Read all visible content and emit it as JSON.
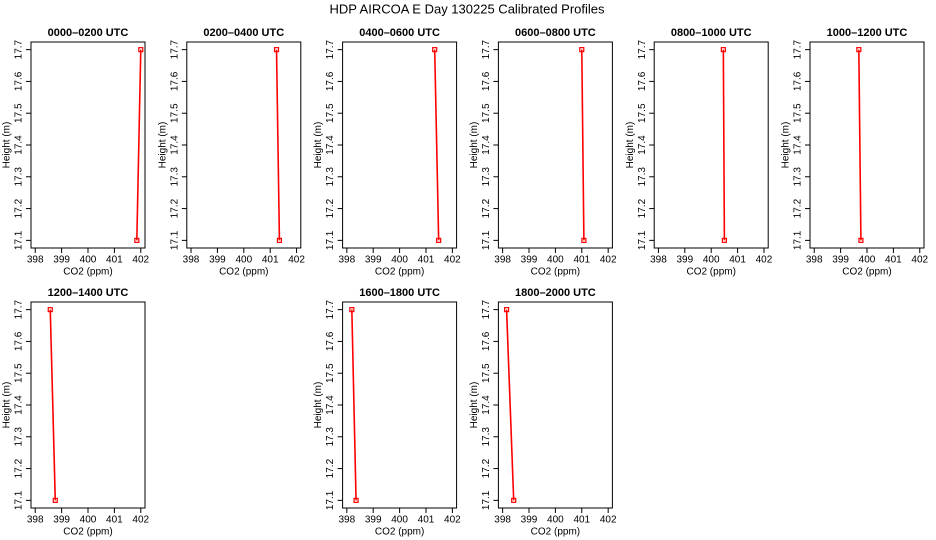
{
  "title": "HDP AIRCOA E  Day 130225  Calibrated Profiles",
  "chart_data": [
    {
      "type": "line",
      "title": "0000–0200 UTC",
      "xlabel": "CO2 (ppm)",
      "ylabel": "Height (m)",
      "x": [
        401.85,
        402.0
      ],
      "values": [
        17.1,
        17.7
      ],
      "color": "#ff0000",
      "xlim": [
        397.84,
        402.16
      ],
      "ylim": [
        17.076,
        17.724
      ],
      "xticks": [
        398,
        399,
        400,
        401,
        402
      ],
      "yticks": [
        17.1,
        17.2,
        17.3,
        17.4,
        17.5,
        17.6,
        17.7
      ]
    },
    {
      "type": "line",
      "title": "0200–0400 UTC",
      "xlabel": "CO2 (ppm)",
      "ylabel": "Height (m)",
      "x": [
        401.35,
        401.24
      ],
      "values": [
        17.1,
        17.7
      ],
      "color": "#ff0000",
      "xlim": [
        397.84,
        402.16
      ],
      "ylim": [
        17.076,
        17.724
      ],
      "xticks": [
        398,
        399,
        400,
        401,
        402
      ],
      "yticks": [
        17.1,
        17.2,
        17.3,
        17.4,
        17.5,
        17.6,
        17.7
      ]
    },
    {
      "type": "line",
      "title": "0400–0600 UTC",
      "xlabel": "CO2 (ppm)",
      "ylabel": "Height (m)",
      "x": [
        401.48,
        401.33
      ],
      "values": [
        17.1,
        17.7
      ],
      "color": "#ff0000",
      "xlim": [
        397.84,
        402.16
      ],
      "ylim": [
        17.076,
        17.724
      ],
      "xticks": [
        398,
        399,
        400,
        401,
        402
      ],
      "yticks": [
        17.1,
        17.2,
        17.3,
        17.4,
        17.5,
        17.6,
        17.7
      ]
    },
    {
      "type": "line",
      "title": "0600–0800 UTC",
      "xlabel": "CO2 (ppm)",
      "ylabel": "Height (m)",
      "x": [
        401.08,
        401.0
      ],
      "values": [
        17.1,
        17.7
      ],
      "color": "#ff0000",
      "xlim": [
        397.84,
        402.16
      ],
      "ylim": [
        17.076,
        17.724
      ],
      "xticks": [
        398,
        399,
        400,
        401,
        402
      ],
      "yticks": [
        17.1,
        17.2,
        17.3,
        17.4,
        17.5,
        17.6,
        17.7
      ]
    },
    {
      "type": "line",
      "title": "0800–1000 UTC",
      "xlabel": "CO2 (ppm)",
      "ylabel": "Height (m)",
      "x": [
        400.5,
        400.46
      ],
      "values": [
        17.1,
        17.7
      ],
      "color": "#ff0000",
      "xlim": [
        397.84,
        402.16
      ],
      "ylim": [
        17.076,
        17.724
      ],
      "xticks": [
        398,
        399,
        400,
        401,
        402
      ],
      "yticks": [
        17.1,
        17.2,
        17.3,
        17.4,
        17.5,
        17.6,
        17.7
      ]
    },
    {
      "type": "line",
      "title": "1000–1200 UTC",
      "xlabel": "CO2 (ppm)",
      "ylabel": "Height (m)",
      "x": [
        399.77,
        399.69
      ],
      "values": [
        17.1,
        17.7
      ],
      "color": "#ff0000",
      "xlim": [
        397.84,
        402.16
      ],
      "ylim": [
        17.076,
        17.724
      ],
      "xticks": [
        398,
        399,
        400,
        401,
        402
      ],
      "yticks": [
        17.1,
        17.2,
        17.3,
        17.4,
        17.5,
        17.6,
        17.7
      ]
    },
    {
      "type": "line",
      "title": "1200–1400 UTC",
      "xlabel": "CO2 (ppm)",
      "ylabel": "Height (m)",
      "x": [
        398.76,
        398.57
      ],
      "values": [
        17.1,
        17.7
      ],
      "color": "#ff0000",
      "xlim": [
        397.84,
        402.16
      ],
      "ylim": [
        17.076,
        17.724
      ],
      "xticks": [
        398,
        399,
        400,
        401,
        402
      ],
      "yticks": [
        17.1,
        17.2,
        17.3,
        17.4,
        17.5,
        17.6,
        17.7
      ]
    },
    {
      "type": "line",
      "title": "1600–1800 UTC",
      "xlabel": "CO2 (ppm)",
      "ylabel": "Height (m)",
      "x": [
        398.35,
        398.19
      ],
      "values": [
        17.1,
        17.7
      ],
      "color": "#ff0000",
      "xlim": [
        397.84,
        402.16
      ],
      "ylim": [
        17.076,
        17.724
      ],
      "xticks": [
        398,
        399,
        400,
        401,
        402
      ],
      "yticks": [
        17.1,
        17.2,
        17.3,
        17.4,
        17.5,
        17.6,
        17.7
      ]
    },
    {
      "type": "line",
      "title": "1800–2000 UTC",
      "xlabel": "CO2 (ppm)",
      "ylabel": "Height (m)",
      "x": [
        398.42,
        398.15
      ],
      "values": [
        17.1,
        17.7
      ],
      "color": "#ff0000",
      "xlim": [
        397.84,
        402.16
      ],
      "ylim": [
        17.076,
        17.724
      ],
      "xticks": [
        398,
        399,
        400,
        401,
        402
      ],
      "yticks": [
        17.1,
        17.2,
        17.3,
        17.4,
        17.5,
        17.6,
        17.7
      ]
    }
  ]
}
